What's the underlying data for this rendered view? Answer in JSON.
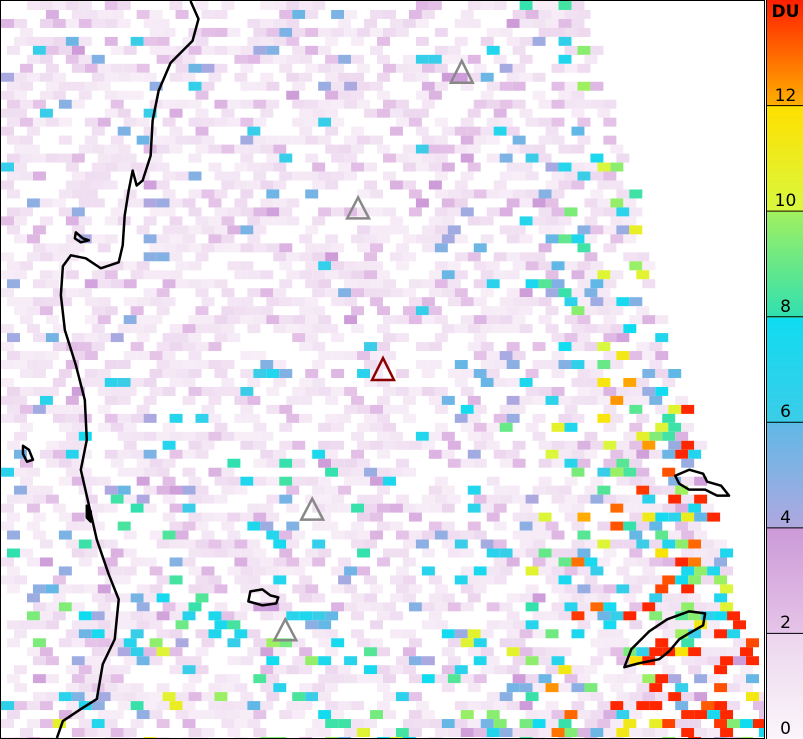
{
  "colorbar": {
    "unit": "DU",
    "min": 0,
    "max": 14,
    "ticks": [
      "0",
      "2",
      "4",
      "6",
      "8",
      "10",
      "12"
    ],
    "stops": [
      {
        "v": 0,
        "c": "#fbf6fb"
      },
      {
        "v": 2,
        "c": "#ecd6ee"
      },
      {
        "v": 2.01,
        "c": "#e6c4e8"
      },
      {
        "v": 4,
        "c": "#cc9ad8"
      },
      {
        "v": 4.01,
        "c": "#b0a8e0"
      },
      {
        "v": 6,
        "c": "#60b8e6"
      },
      {
        "v": 6.01,
        "c": "#3ccce8"
      },
      {
        "v": 8,
        "c": "#10dcf0"
      },
      {
        "v": 8.01,
        "c": "#30e0b0"
      },
      {
        "v": 10,
        "c": "#a0f060"
      },
      {
        "v": 10.01,
        "c": "#d8f840"
      },
      {
        "v": 12,
        "c": "#ffe000"
      },
      {
        "v": 12.01,
        "c": "#ffb000"
      },
      {
        "v": 14,
        "c": "#ff2000"
      }
    ]
  },
  "markers": {
    "volcano_color": "#888888",
    "highlight_color": "#8b0000"
  }
}
